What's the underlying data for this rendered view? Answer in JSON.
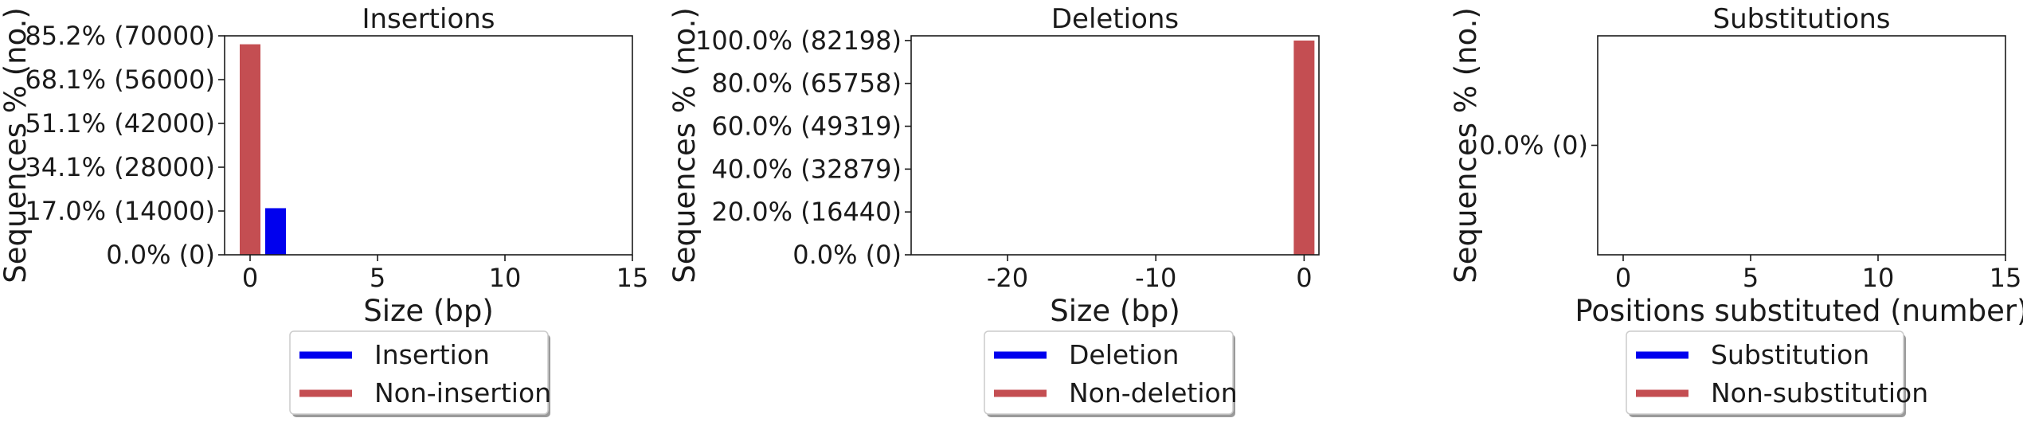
{
  "colors": {
    "modified": "#0000ee",
    "unmodified": "#c44e52",
    "axis": "#1a1a1a"
  },
  "chart_data": [
    {
      "type": "bar",
      "title": "Insertions",
      "xlabel": "Size (bp)",
      "ylabel": "Sequences % (no.)",
      "xlim": [
        -1,
        15
      ],
      "ylim": [
        0,
        70000
      ],
      "xticks": [
        0,
        5,
        10,
        15
      ],
      "yticks": [
        0,
        14000,
        28000,
        42000,
        56000,
        70000
      ],
      "yticklabels": [
        "0.0% (0)",
        "17.0% (14000)",
        "34.1% (28000)",
        "51.1% (42000)",
        "68.1% (56000)",
        "85.2% (70000)"
      ],
      "series": [
        {
          "name": "Insertion",
          "color_key": "modified",
          "points": [
            {
              "x": 1,
              "y": 14900
            }
          ]
        },
        {
          "name": "Non-insertion",
          "color_key": "unmodified",
          "points": [
            {
              "x": 0,
              "y": 67300
            }
          ]
        }
      ],
      "legend_position": "below"
    },
    {
      "type": "bar",
      "title": "Deletions",
      "xlabel": "Size (bp)",
      "ylabel": "Sequences % (no.)",
      "xlim": [
        -26.5,
        1
      ],
      "ylim": [
        0,
        84000
      ],
      "xticks": [
        -20,
        -10,
        0
      ],
      "yticks": [
        0,
        16440,
        32879,
        49319,
        65758,
        82198
      ],
      "yticklabels": [
        "0.0% (0)",
        "20.0% (16440)",
        "40.0% (32879)",
        "60.0% (49319)",
        "80.0% (65758)",
        "100.0% (82198)"
      ],
      "series": [
        {
          "name": "Deletion",
          "color_key": "modified",
          "points": []
        },
        {
          "name": "Non-deletion",
          "color_key": "unmodified",
          "points": [
            {
              "x": 0,
              "y": 82198
            }
          ]
        }
      ],
      "legend_position": "below"
    },
    {
      "type": "bar",
      "title": "Substitutions",
      "xlabel": "Positions substituted (number)",
      "ylabel": "Sequences % (no.)",
      "xlim": [
        -1,
        15
      ],
      "ylim": [
        -1,
        1
      ],
      "xticks": [
        0,
        5,
        10,
        15
      ],
      "yticks": [
        0
      ],
      "yticklabels": [
        "0.0% (0)"
      ],
      "series": [
        {
          "name": "Substitution",
          "color_key": "modified",
          "points": []
        },
        {
          "name": "Non-substitution",
          "color_key": "unmodified",
          "points": []
        }
      ],
      "legend_position": "below"
    }
  ]
}
